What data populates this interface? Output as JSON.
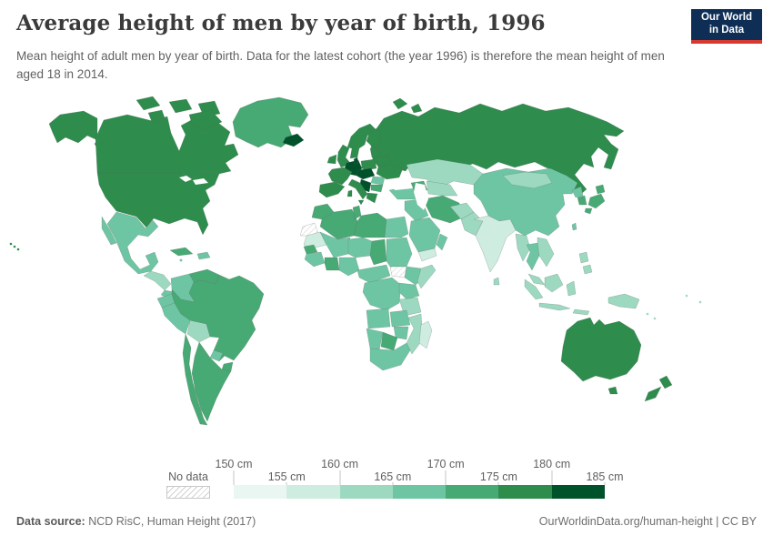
{
  "header": {
    "title": "Average height of men by year of birth, 1996",
    "subtitle": "Mean height of adult men by year of birth. Data for the latest cohort (the year 1996) is therefore the mean height of men aged 18 in 2014.",
    "logo": {
      "line1": "Our World",
      "line2": "in Data",
      "bg_color": "#0e2e55",
      "stripe_color": "#d6392f"
    }
  },
  "legend": {
    "no_data_label": "No data",
    "ticks": [
      "150 cm",
      "155 cm",
      "160 cm",
      "165 cm",
      "170 cm",
      "175 cm",
      "180 cm",
      "185 cm"
    ],
    "bin_order": [
      "150-155",
      "155-160",
      "160-165",
      "165-170",
      "170-175",
      "175-180",
      "180-185"
    ]
  },
  "footer": {
    "source_label": "Data source:",
    "source_text": " NCD RisC, Human Height (2017)",
    "credit": "OurWorldinData.org/human-height | CC BY"
  },
  "chart_data": {
    "type": "choropleth",
    "title": "Average height of men by year of birth, 1996",
    "unit": "cm",
    "legend_range_cm": [
      150,
      185
    ],
    "bin_size_cm": 5,
    "palette": {
      "150-155": "#e9f6f2",
      "155-160": "#cfece1",
      "160-165": "#9cd9c0",
      "165-170": "#6ec5a3",
      "170-175": "#47a973",
      "175-180": "#2e8c4c",
      "180-185": "#00522a",
      "no-data": "hatch"
    },
    "regions": [
      {
        "id": "canada",
        "name": "Canada",
        "bin": "175-180"
      },
      {
        "id": "usa",
        "name": "United States",
        "bin": "175-180"
      },
      {
        "id": "alaska",
        "name": "Alaska (United States)",
        "bin": "175-180"
      },
      {
        "id": "hawaii",
        "name": "Hawaii (United States)",
        "bin": "175-180"
      },
      {
        "id": "greenland",
        "name": "Greenland",
        "bin": "170-175"
      },
      {
        "id": "iceland",
        "name": "Iceland",
        "bin": "180-185"
      },
      {
        "id": "mexico",
        "name": "Mexico",
        "bin": "165-170"
      },
      {
        "id": "guatemala-honduras",
        "name": "Guatemala, Honduras & Nicaragua",
        "bin": "160-165"
      },
      {
        "id": "costa-rica-panama",
        "name": "Costa Rica & Panama",
        "bin": "165-170"
      },
      {
        "id": "cuba",
        "name": "Cuba",
        "bin": "170-175"
      },
      {
        "id": "hispaniola",
        "name": "Haiti & Dominican Republic",
        "bin": "165-170"
      },
      {
        "id": "jamaica",
        "name": "Jamaica",
        "bin": "165-170"
      },
      {
        "id": "colombia",
        "name": "Colombia",
        "bin": "165-170"
      },
      {
        "id": "venezuela",
        "name": "Venezuela",
        "bin": "170-175"
      },
      {
        "id": "ecuador",
        "name": "Ecuador",
        "bin": "165-170"
      },
      {
        "id": "peru",
        "name": "Peru",
        "bin": "165-170"
      },
      {
        "id": "bolivia",
        "name": "Bolivia",
        "bin": "160-165"
      },
      {
        "id": "brazil",
        "name": "Brazil",
        "bin": "170-175"
      },
      {
        "id": "paraguay",
        "name": "Paraguay",
        "bin": "165-170"
      },
      {
        "id": "uruguay",
        "name": "Uruguay",
        "bin": "170-175"
      },
      {
        "id": "argentina",
        "name": "Argentina",
        "bin": "170-175"
      },
      {
        "id": "chile",
        "name": "Chile",
        "bin": "170-175"
      },
      {
        "id": "united-kingdom",
        "name": "United Kingdom",
        "bin": "175-180"
      },
      {
        "id": "ireland",
        "name": "Ireland",
        "bin": "175-180"
      },
      {
        "id": "norway-sweden",
        "name": "Norway & Sweden",
        "bin": "175-180"
      },
      {
        "id": "finland",
        "name": "Finland",
        "bin": "175-180"
      },
      {
        "id": "denmark",
        "name": "Denmark",
        "bin": "180-185"
      },
      {
        "id": "france",
        "name": "France",
        "bin": "175-180"
      },
      {
        "id": "iberia",
        "name": "Spain & Portugal",
        "bin": "175-180"
      },
      {
        "id": "germany-benelux",
        "name": "Germany, Netherlands & Belgium",
        "bin": "180-185"
      },
      {
        "id": "czech-austria-hungary",
        "name": "Czechia, Austria & Hungary",
        "bin": "180-185"
      },
      {
        "id": "poland",
        "name": "Poland",
        "bin": "175-180"
      },
      {
        "id": "baltics",
        "name": "Baltic states",
        "bin": "175-180"
      },
      {
        "id": "belarus",
        "name": "Belarus",
        "bin": "175-180"
      },
      {
        "id": "ukraine",
        "name": "Ukraine",
        "bin": "175-180"
      },
      {
        "id": "romania",
        "name": "Romania",
        "bin": "165-170"
      },
      {
        "id": "balkans",
        "name": "Serbia, Croatia & Bosnia",
        "bin": "180-185"
      },
      {
        "id": "bulgaria",
        "name": "Bulgaria",
        "bin": "170-175"
      },
      {
        "id": "greece",
        "name": "Greece",
        "bin": "175-180"
      },
      {
        "id": "italy",
        "name": "Italy",
        "bin": "175-180"
      },
      {
        "id": "russia",
        "name": "Russia",
        "bin": "175-180"
      },
      {
        "id": "turkey",
        "name": "Turkey",
        "bin": "165-170"
      },
      {
        "id": "caucasus",
        "name": "Caucasus",
        "bin": "170-175"
      },
      {
        "id": "syria-iraq",
        "name": "Syria & Iraq",
        "bin": "165-170"
      },
      {
        "id": "iran",
        "name": "Iran",
        "bin": "170-175"
      },
      {
        "id": "saudi-arabia",
        "name": "Saudi Arabia",
        "bin": "165-170"
      },
      {
        "id": "yemen",
        "name": "Yemen",
        "bin": "155-160"
      },
      {
        "id": "oman",
        "name": "Oman",
        "bin": "165-170"
      },
      {
        "id": "morocco",
        "name": "Morocco",
        "bin": "170-175"
      },
      {
        "id": "algeria",
        "name": "Algeria",
        "bin": "170-175"
      },
      {
        "id": "tunisia",
        "name": "Tunisia",
        "bin": "170-175"
      },
      {
        "id": "libya",
        "name": "Libya",
        "bin": "170-175"
      },
      {
        "id": "egypt",
        "name": "Egypt",
        "bin": "165-170"
      },
      {
        "id": "western-sahara",
        "name": "Western Sahara",
        "bin": "no-data"
      },
      {
        "id": "mauritania",
        "name": "Mauritania",
        "bin": "155-160"
      },
      {
        "id": "mali",
        "name": "Mali",
        "bin": "165-170"
      },
      {
        "id": "niger",
        "name": "Niger",
        "bin": "165-170"
      },
      {
        "id": "chad",
        "name": "Chad",
        "bin": "170-175"
      },
      {
        "id": "sudan",
        "name": "Sudan",
        "bin": "165-170"
      },
      {
        "id": "south-sudan",
        "name": "South Sudan",
        "bin": "no-data"
      },
      {
        "id": "ethiopia",
        "name": "Ethiopia",
        "bin": "165-170"
      },
      {
        "id": "somalia",
        "name": "Somalia",
        "bin": "160-165"
      },
      {
        "id": "senegal",
        "name": "Senegal",
        "bin": "170-175"
      },
      {
        "id": "guinea",
        "name": "Guinea region",
        "bin": "165-170"
      },
      {
        "id": "ivory-ghana",
        "name": "Cote d'Ivoire & Ghana",
        "bin": "170-175"
      },
      {
        "id": "nigeria",
        "name": "Nigeria",
        "bin": "165-170"
      },
      {
        "id": "cameroon-car",
        "name": "Cameroon & Central African Republic",
        "bin": "165-170"
      },
      {
        "id": "drc",
        "name": "Democratic Republic of Congo",
        "bin": "165-170"
      },
      {
        "id": "uganda-kenya",
        "name": "Uganda & Kenya",
        "bin": "165-170"
      },
      {
        "id": "tanzania",
        "name": "Tanzania",
        "bin": "160-165"
      },
      {
        "id": "angola",
        "name": "Angola",
        "bin": "165-170"
      },
      {
        "id": "zambia",
        "name": "Zambia",
        "bin": "165-170"
      },
      {
        "id": "mozambique",
        "name": "Mozambique",
        "bin": "160-165"
      },
      {
        "id": "zimbabwe",
        "name": "Zimbabwe",
        "bin": "165-170"
      },
      {
        "id": "botswana",
        "name": "Botswana",
        "bin": "170-175"
      },
      {
        "id": "namibia",
        "name": "Namibia",
        "bin": "165-170"
      },
      {
        "id": "south-africa",
        "name": "South Africa",
        "bin": "165-170"
      },
      {
        "id": "madagascar",
        "name": "Madagascar",
        "bin": "155-160"
      },
      {
        "id": "kazakhstan",
        "name": "Kazakhstan",
        "bin": "160-165"
      },
      {
        "id": "uzbek-turkmen",
        "name": "Uzbekistan & Turkmenistan",
        "bin": "160-165"
      },
      {
        "id": "afghanistan",
        "name": "Afghanistan",
        "bin": "160-165"
      },
      {
        "id": "pakistan",
        "name": "Pakistan",
        "bin": "160-165"
      },
      {
        "id": "india",
        "name": "India",
        "bin": "155-160"
      },
      {
        "id": "sri-lanka",
        "name": "Sri Lanka",
        "bin": "160-165"
      },
      {
        "id": "china",
        "name": "China",
        "bin": "165-170"
      },
      {
        "id": "mongolia",
        "name": "Mongolia",
        "bin": "160-165"
      },
      {
        "id": "north-korea",
        "name": "North Korea",
        "bin": "165-170"
      },
      {
        "id": "south-korea",
        "name": "South Korea",
        "bin": "170-175"
      },
      {
        "id": "japan",
        "name": "Japan",
        "bin": "170-175"
      },
      {
        "id": "taiwan",
        "name": "Taiwan",
        "bin": "165-170"
      },
      {
        "id": "myanmar",
        "name": "Myanmar",
        "bin": "160-165"
      },
      {
        "id": "thailand",
        "name": "Thailand",
        "bin": "165-170"
      },
      {
        "id": "vietnam-laos",
        "name": "Vietnam, Laos & Cambodia",
        "bin": "160-165"
      },
      {
        "id": "malaysia",
        "name": "Malaysia",
        "bin": "160-165"
      },
      {
        "id": "philippines",
        "name": "Philippines",
        "bin": "160-165"
      },
      {
        "id": "indonesia",
        "name": "Indonesia",
        "bin": "160-165"
      },
      {
        "id": "new-guinea",
        "name": "Papua New Guinea",
        "bin": "160-165"
      },
      {
        "id": "pacific-islands",
        "name": "Pacific islands",
        "bin": "160-165"
      },
      {
        "id": "australia",
        "name": "Australia",
        "bin": "175-180"
      },
      {
        "id": "new-zealand",
        "name": "New Zealand",
        "bin": "175-180"
      }
    ]
  }
}
